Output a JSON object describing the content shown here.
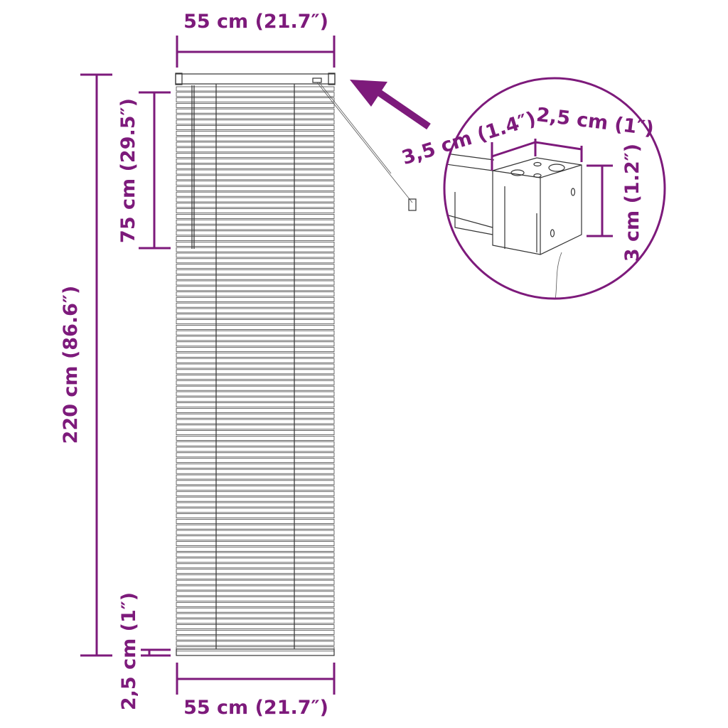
{
  "accent_color": "#7d1a7b",
  "labels": {
    "top_width": "55 cm (21.7″)",
    "bottom_width": "55 cm (21.7″)",
    "total_height": "220 cm (86.6″)",
    "cord_length": "75 cm (29.5″)",
    "bottom_rail": "2,5 cm (1″)",
    "headrail_depth": "3,5 cm (1.4″)",
    "headrail_width": "2,5 cm (1″)",
    "headrail_height": "3 cm (1.2″)"
  },
  "icons": {
    "arrow": "arrow-up-left-icon"
  }
}
